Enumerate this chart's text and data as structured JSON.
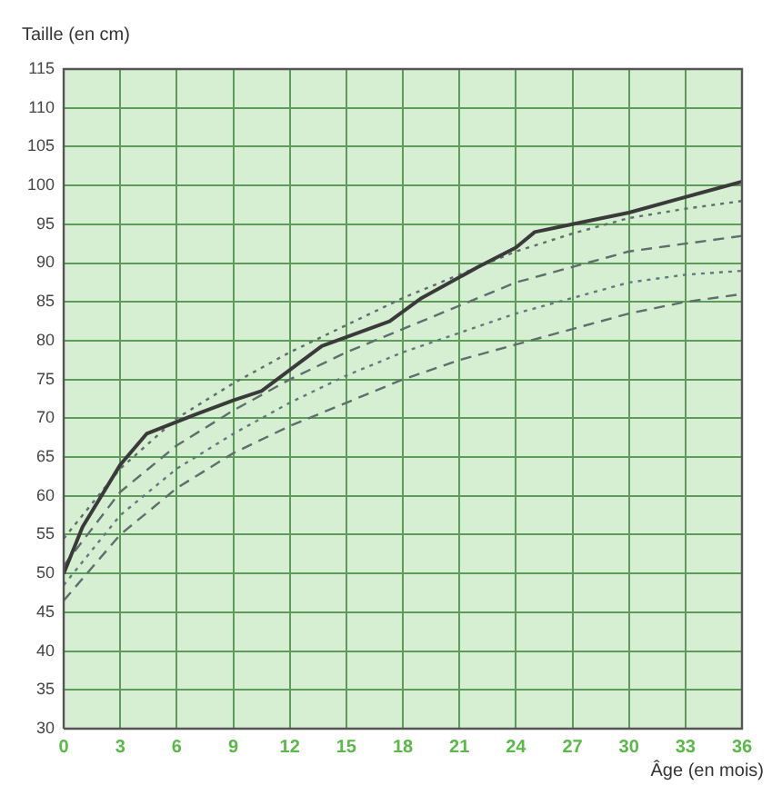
{
  "chart_data": {
    "type": "line",
    "xlabel": "Âge (en mois)",
    "ylabel": "Taille (en cm)",
    "xlim": [
      0,
      36
    ],
    "xticks": [
      0,
      3,
      6,
      9,
      12,
      15,
      18,
      21,
      24,
      27,
      30,
      33,
      36
    ],
    "ylim": [
      30,
      115
    ],
    "yticks": [
      30,
      35,
      40,
      45,
      50,
      55,
      60,
      65,
      70,
      75,
      80,
      85,
      90,
      95,
      100,
      105,
      110,
      115
    ],
    "grid": true,
    "marker": "none",
    "series": [
      {
        "color": "#3a3a3a",
        "line_style": "solid",
        "x": [
          0,
          1,
          3,
          4.4,
          7,
          9,
          10.5,
          13.7,
          17.3,
          19,
          22,
          24,
          25,
          27,
          30,
          33,
          36
        ],
        "values": [
          50,
          56,
          64,
          68,
          70.5,
          72.3,
          73.5,
          79.3,
          82.5,
          85.5,
          89.5,
          92,
          94,
          95,
          96.5,
          98.5,
          100.5
        ]
      },
      {
        "color": "#5f6e6c",
        "line_style": "dotted",
        "x": [
          0,
          3,
          6,
          9,
          12,
          15,
          18,
          21,
          24,
          27,
          30,
          33,
          36
        ],
        "values": [
          54.5,
          63.5,
          70,
          74.5,
          78.5,
          82,
          85.5,
          88.5,
          91.5,
          93.8,
          95.8,
          97,
          98
        ]
      },
      {
        "color": "#5f6e6c",
        "line_style": "dashed",
        "x": [
          0,
          3,
          6,
          9,
          12,
          15,
          18,
          21,
          24,
          27,
          30,
          33,
          36
        ],
        "values": [
          51,
          60.5,
          66.5,
          71,
          75,
          78.5,
          81.5,
          84.5,
          87.5,
          89.5,
          91.5,
          92.5,
          93.5
        ]
      },
      {
        "color": "#5f6e6c",
        "line_style": "dashed",
        "x": [
          0,
          3,
          6,
          9,
          12,
          15,
          18,
          21,
          24,
          27,
          30,
          33,
          36
        ],
        "values": [
          46.5,
          55,
          61,
          65.5,
          69,
          72,
          75,
          77.5,
          79.5,
          81.5,
          83.5,
          85,
          86
        ]
      },
      {
        "color": "#5f7a7e",
        "line_style": "dotted",
        "x": [
          0,
          3,
          6,
          9,
          12,
          15,
          18,
          21,
          24,
          27,
          30,
          33,
          36
        ],
        "values": [
          48.5,
          57.5,
          63.5,
          68,
          72,
          75.5,
          78.5,
          81,
          83.5,
          85.5,
          87.5,
          88.5,
          89
        ]
      }
    ]
  }
}
